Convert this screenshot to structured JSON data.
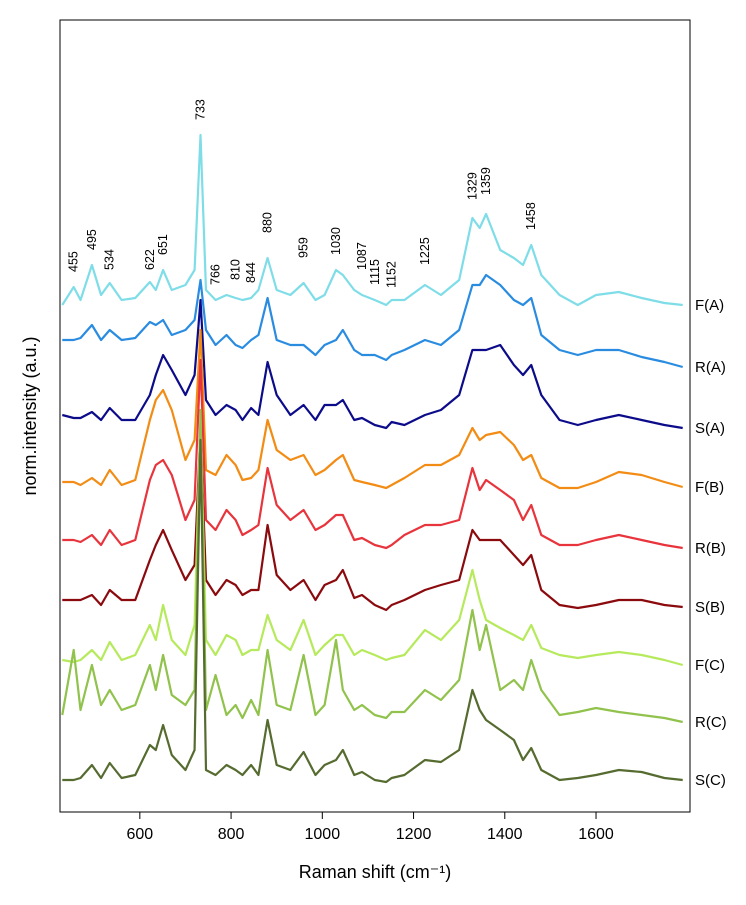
{
  "chart_data": {
    "type": "line",
    "xlabel": "Raman shift (cm⁻¹)",
    "ylabel": "norm.intensity (a.u.)",
    "x": [
      430,
      455,
      470,
      495,
      515,
      534,
      560,
      590,
      622,
      635,
      651,
      670,
      700,
      720,
      733,
      745,
      766,
      790,
      810,
      825,
      844,
      860,
      880,
      900,
      930,
      959,
      985,
      1005,
      1030,
      1045,
      1070,
      1087,
      1115,
      1140,
      1152,
      1180,
      1225,
      1260,
      1300,
      1329,
      1345,
      1359,
      1390,
      1420,
      1440,
      1458,
      1480,
      1520,
      1560,
      1600,
      1650,
      1700,
      1750,
      1790
    ],
    "series": [
      {
        "name": "F(A)",
        "color": "#7fdde8",
        "values": [
          695,
          713,
          700,
          735,
          705,
          717,
          700,
          702,
          718,
          710,
          730,
          710,
          715,
          730,
          865,
          710,
          700,
          705,
          702,
          700,
          702,
          710,
          742,
          710,
          705,
          717,
          700,
          705,
          730,
          725,
          710,
          705,
          700,
          695,
          700,
          700,
          715,
          705,
          720,
          782,
          772,
          786,
          750,
          742,
          735,
          755,
          725,
          705,
          695,
          705,
          708,
          702,
          697,
          695
        ]
      },
      {
        "name": "R(A)",
        "color": "#2a8ce0",
        "values": [
          660,
          660,
          662,
          675,
          660,
          670,
          660,
          662,
          678,
          675,
          680,
          665,
          670,
          680,
          720,
          670,
          655,
          665,
          655,
          652,
          660,
          665,
          702,
          660,
          655,
          655,
          645,
          655,
          660,
          670,
          650,
          645,
          645,
          640,
          645,
          650,
          660,
          655,
          670,
          715,
          715,
          725,
          715,
          700,
          695,
          702,
          665,
          650,
          645,
          650,
          650,
          643,
          638,
          633
        ]
      },
      {
        "name": "S(A)",
        "color": "#0c0c8a",
        "values": [
          585,
          582,
          582,
          588,
          580,
          592,
          580,
          580,
          605,
          625,
          645,
          630,
          605,
          625,
          700,
          600,
          585,
          595,
          590,
          580,
          592,
          585,
          638,
          605,
          585,
          595,
          580,
          595,
          595,
          600,
          580,
          582,
          575,
          572,
          578,
          575,
          585,
          590,
          605,
          650,
          650,
          650,
          655,
          635,
          625,
          635,
          605,
          580,
          575,
          580,
          585,
          580,
          575,
          572
        ]
      },
      {
        "name": "F(B)",
        "color": "#f28c14",
        "values": [
          518,
          518,
          515,
          522,
          515,
          530,
          515,
          520,
          580,
          600,
          610,
          590,
          540,
          560,
          670,
          530,
          525,
          545,
          535,
          520,
          522,
          530,
          580,
          550,
          540,
          545,
          525,
          530,
          540,
          545,
          520,
          518,
          515,
          512,
          515,
          522,
          535,
          535,
          545,
          572,
          560,
          565,
          568,
          555,
          540,
          545,
          522,
          512,
          512,
          518,
          528,
          525,
          518,
          513
        ]
      },
      {
        "name": "R(B)",
        "color": "#e8343c",
        "values": [
          460,
          460,
          458,
          465,
          455,
          470,
          455,
          460,
          520,
          535,
          540,
          525,
          480,
          500,
          640,
          480,
          470,
          490,
          480,
          465,
          470,
          475,
          532,
          495,
          480,
          490,
          470,
          475,
          485,
          485,
          460,
          462,
          455,
          452,
          455,
          465,
          475,
          475,
          480,
          532,
          510,
          520,
          510,
          500,
          480,
          495,
          465,
          455,
          455,
          460,
          465,
          460,
          455,
          452
        ]
      },
      {
        "name": "S(B)",
        "color": "#8b0a0e",
        "values": [
          400,
          400,
          400,
          405,
          395,
          410,
          400,
          400,
          440,
          455,
          470,
          450,
          420,
          435,
          570,
          420,
          405,
          420,
          415,
          405,
          410,
          410,
          475,
          425,
          410,
          420,
          400,
          415,
          420,
          430,
          402,
          405,
          395,
          390,
          395,
          400,
          410,
          415,
          420,
          470,
          460,
          460,
          460,
          445,
          435,
          445,
          410,
          395,
          392,
          395,
          400,
          400,
          395,
          393
        ]
      },
      {
        "name": "F(C)",
        "color": "#b6ea5c",
        "values": [
          340,
          338,
          340,
          350,
          340,
          358,
          340,
          345,
          375,
          360,
          395,
          360,
          345,
          375,
          580,
          360,
          345,
          365,
          360,
          345,
          350,
          350,
          385,
          360,
          350,
          380,
          345,
          355,
          365,
          365,
          345,
          350,
          345,
          340,
          342,
          345,
          370,
          360,
          380,
          430,
          400,
          380,
          372,
          365,
          360,
          375,
          352,
          345,
          342,
          345,
          348,
          345,
          340,
          335
        ]
      },
      {
        "name": "R(C)",
        "color": "#90c24c",
        "values": [
          285,
          350,
          290,
          335,
          295,
          310,
          290,
          295,
          335,
          310,
          345,
          305,
          295,
          310,
          590,
          290,
          325,
          285,
          295,
          282,
          300,
          285,
          350,
          295,
          290,
          345,
          285,
          295,
          360,
          310,
          290,
          295,
          285,
          282,
          288,
          288,
          310,
          300,
          320,
          390,
          350,
          375,
          310,
          320,
          310,
          340,
          310,
          285,
          288,
          292,
          288,
          285,
          282,
          278
        ]
      },
      {
        "name": "S(C)",
        "color": "#566b30",
        "values": [
          220,
          220,
          222,
          235,
          222,
          237,
          222,
          225,
          255,
          250,
          275,
          245,
          230,
          250,
          560,
          230,
          225,
          235,
          230,
          225,
          235,
          225,
          280,
          235,
          230,
          248,
          225,
          235,
          240,
          250,
          225,
          228,
          220,
          218,
          222,
          225,
          240,
          238,
          250,
          310,
          290,
          280,
          270,
          260,
          240,
          252,
          230,
          220,
          222,
          225,
          230,
          228,
          222,
          220
        ]
      }
    ],
    "peak_labels": [
      455,
      495,
      534,
      622,
      651,
      733,
      766,
      810,
      844,
      880,
      959,
      1030,
      1087,
      1115,
      1152,
      1225,
      1329,
      1359,
      1458
    ],
    "xlim": [
      425,
      1806
    ],
    "xticks": [
      600,
      800,
      1000,
      1200,
      1400,
      1600
    ],
    "ylim": [
      188,
      980
    ]
  }
}
